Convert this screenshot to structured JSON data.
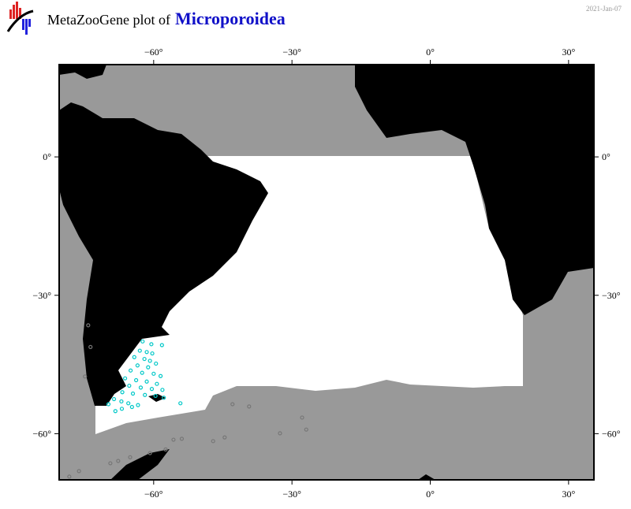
{
  "header": {
    "title": "MetaZooGene plot of",
    "taxon": "Microporoidea",
    "date": "2021-Jan-07"
  },
  "chart_data": {
    "type": "map",
    "xlim": [
      -80.5,
      35.5
    ],
    "ylim": [
      -70,
      20
    ],
    "xticks": [
      {
        "value": -60,
        "label": "−60°"
      },
      {
        "value": -30,
        "label": "−30°"
      },
      {
        "value": 0,
        "label": "0°"
      },
      {
        "value": 30,
        "label": "30°"
      }
    ],
    "yticks": [
      {
        "value": 0,
        "label": "0°"
      },
      {
        "value": -30,
        "label": "−30°"
      },
      {
        "value": -60,
        "label": "−60°"
      }
    ],
    "series": [
      {
        "color": "#00c8c8",
        "points": [
          [
            -62.4,
            -40
          ],
          [
            -60.5,
            -40.6
          ],
          [
            -58.2,
            -40.8
          ],
          [
            -63,
            -42
          ],
          [
            -61.5,
            -42.3
          ],
          [
            -60.3,
            -42.6
          ],
          [
            -64.2,
            -43.4
          ],
          [
            -62,
            -43.8
          ],
          [
            -60.8,
            -44.2
          ],
          [
            -59.5,
            -44.8
          ],
          [
            -63.5,
            -45.2
          ],
          [
            -61.2,
            -45.6
          ],
          [
            -65,
            -46.3
          ],
          [
            -62.5,
            -46.8
          ],
          [
            -60,
            -47
          ],
          [
            -58.5,
            -47.5
          ],
          [
            -66.2,
            -48
          ],
          [
            -63.8,
            -48.4
          ],
          [
            -61.5,
            -48.7
          ],
          [
            -59.3,
            -49.2
          ],
          [
            -65.3,
            -49.6
          ],
          [
            -62.8,
            -50
          ],
          [
            -60.4,
            -50.3
          ],
          [
            -58.1,
            -50.5
          ],
          [
            -66.8,
            -51
          ],
          [
            -64.5,
            -51.3
          ],
          [
            -61.9,
            -51.6
          ],
          [
            -59.6,
            -51.8
          ],
          [
            -57.8,
            -52.2
          ],
          [
            -68.6,
            -52.5
          ],
          [
            -67,
            -53
          ],
          [
            -65.5,
            -53.4
          ],
          [
            -63.4,
            -53.8
          ],
          [
            -64.7,
            -54.2
          ],
          [
            -66.9,
            -54.6
          ],
          [
            -68.3,
            -55.1
          ],
          [
            -69.8,
            -53.6
          ],
          [
            -54.2,
            -53.4
          ]
        ]
      },
      {
        "color": "#777777",
        "points": [
          [
            -42.9,
            -53.6
          ],
          [
            -39.3,
            -54.1
          ],
          [
            -27.8,
            -56.5
          ],
          [
            -26.9,
            -59.1
          ],
          [
            -32.6,
            -59.9
          ],
          [
            -47.1,
            -61.6
          ],
          [
            -44.6,
            -60.8
          ],
          [
            -55.7,
            -61.3
          ],
          [
            -53.9,
            -61.1
          ],
          [
            -57.4,
            -63.4
          ],
          [
            -60.8,
            -64.2
          ],
          [
            -65.1,
            -65.1
          ],
          [
            -67.7,
            -65.9
          ],
          [
            -69.4,
            -66.4
          ],
          [
            -76.2,
            -68.1
          ],
          [
            -78.3,
            -69.3
          ],
          [
            -74.2,
            -36.5
          ],
          [
            -73.7,
            -41.2
          ],
          [
            -74.9,
            -47.6
          ]
        ]
      }
    ]
  }
}
